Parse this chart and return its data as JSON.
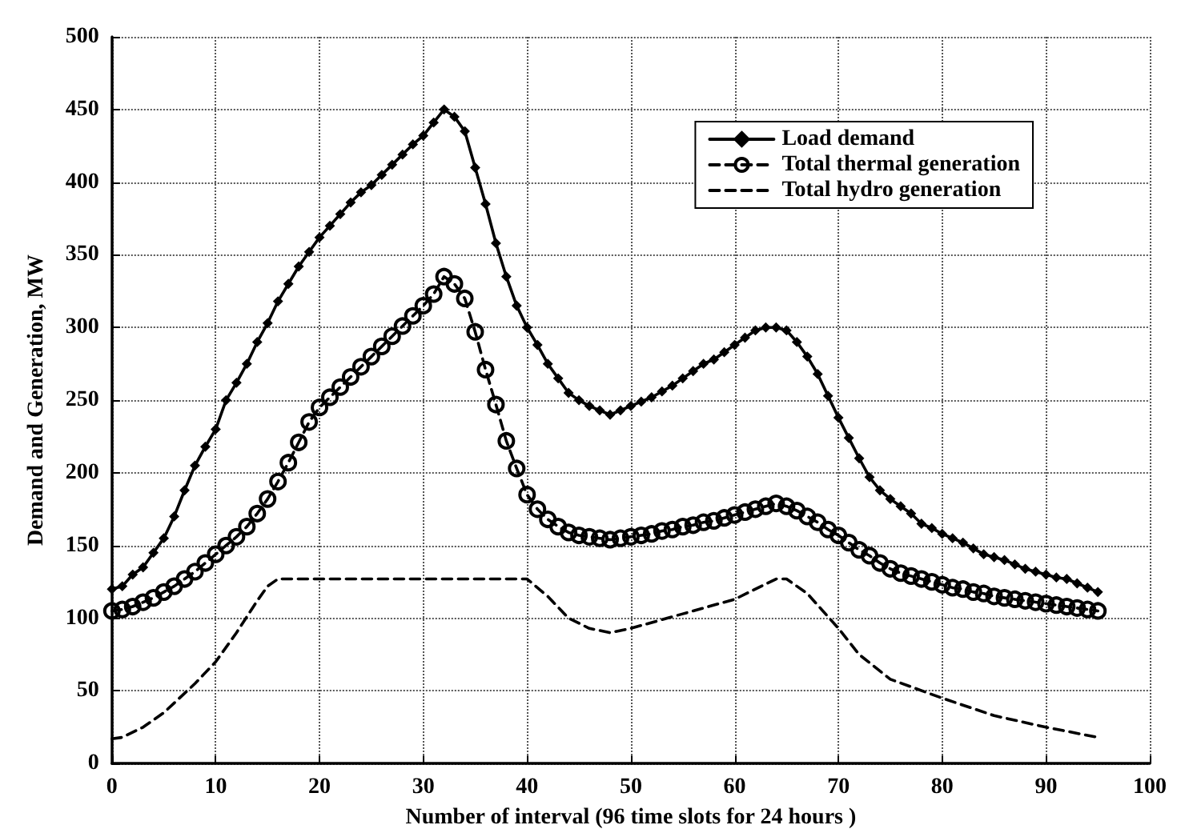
{
  "chart_data": {
    "type": "line",
    "xlabel": "Number of interval (96 time slots for 24 hours )",
    "ylabel": "Demand and Generation, MW",
    "xlim": [
      0,
      100
    ],
    "xticks": [
      0,
      10,
      20,
      30,
      40,
      50,
      60,
      70,
      80,
      90,
      100
    ],
    "ylim": [
      0,
      500
    ],
    "yticks": [
      0,
      50,
      100,
      150,
      200,
      250,
      300,
      350,
      400,
      450,
      500
    ],
    "grid": true,
    "legend": "top right",
    "series": [
      {
        "name": "Load demand",
        "color": "#000000",
        "marker": "diamond",
        "line_style": "solid",
        "x": [
          0,
          1,
          2,
          3,
          4,
          5,
          6,
          7,
          8,
          9,
          10,
          11,
          12,
          13,
          14,
          15,
          16,
          17,
          18,
          19,
          20,
          21,
          22,
          23,
          24,
          25,
          26,
          27,
          28,
          29,
          30,
          31,
          32,
          33,
          34,
          35,
          36,
          37,
          38,
          39,
          40,
          41,
          42,
          43,
          44,
          45,
          46,
          47,
          48,
          49,
          50,
          51,
          52,
          53,
          54,
          55,
          56,
          57,
          58,
          59,
          60,
          61,
          62,
          63,
          64,
          65,
          66,
          67,
          68,
          69,
          70,
          71,
          72,
          73,
          74,
          75,
          76,
          77,
          78,
          79,
          80,
          81,
          82,
          83,
          84,
          85,
          86,
          87,
          88,
          89,
          90,
          91,
          92,
          93,
          94,
          95
        ],
        "values": [
          120,
          122,
          130,
          135,
          145,
          155,
          170,
          188,
          205,
          218,
          230,
          250,
          262,
          275,
          290,
          303,
          318,
          330,
          342,
          352,
          362,
          370,
          378,
          386,
          393,
          398,
          405,
          412,
          419,
          426,
          432,
          441,
          450,
          445,
          435,
          410,
          385,
          358,
          335,
          315,
          300,
          288,
          275,
          265,
          255,
          250,
          246,
          243,
          240,
          243,
          246,
          249,
          252,
          256,
          260,
          265,
          270,
          275,
          278,
          283,
          288,
          293,
          298,
          300,
          300,
          298,
          290,
          280,
          268,
          253,
          238,
          224,
          210,
          197,
          188,
          182,
          177,
          172,
          165,
          162,
          158,
          155,
          152,
          148,
          144,
          142,
          140,
          137,
          134,
          132,
          130,
          128,
          127,
          124,
          121,
          118
        ]
      },
      {
        "name": "Total thermal generation",
        "color": "#000000",
        "marker": "circle",
        "line_style": "dashed",
        "x": [
          0,
          1,
          2,
          3,
          4,
          5,
          6,
          7,
          8,
          9,
          10,
          11,
          12,
          13,
          14,
          15,
          16,
          17,
          18,
          19,
          20,
          21,
          22,
          23,
          24,
          25,
          26,
          27,
          28,
          29,
          30,
          31,
          32,
          33,
          34,
          35,
          36,
          37,
          38,
          39,
          40,
          41,
          42,
          43,
          44,
          45,
          46,
          47,
          48,
          49,
          50,
          51,
          52,
          53,
          54,
          55,
          56,
          57,
          58,
          59,
          60,
          61,
          62,
          63,
          64,
          65,
          66,
          67,
          68,
          69,
          70,
          71,
          72,
          73,
          74,
          75,
          76,
          77,
          78,
          79,
          80,
          81,
          82,
          83,
          84,
          85,
          86,
          87,
          88,
          89,
          90,
          91,
          92,
          93,
          94,
          95
        ],
        "values": [
          105,
          106,
          108,
          111,
          114,
          118,
          122,
          127,
          132,
          138,
          144,
          150,
          156,
          163,
          172,
          182,
          194,
          207,
          221,
          235,
          245,
          252,
          259,
          266,
          273,
          280,
          287,
          294,
          301,
          308,
          315,
          323,
          335,
          330,
          320,
          297,
          271,
          247,
          222,
          203,
          185,
          175,
          168,
          163,
          159,
          157,
          156,
          155,
          154,
          155,
          156,
          157,
          158,
          160,
          161,
          163,
          164,
          166,
          167,
          169,
          171,
          173,
          175,
          177,
          179,
          177,
          174,
          170,
          166,
          161,
          157,
          152,
          147,
          143,
          138,
          134,
          131,
          129,
          127,
          125,
          123,
          121,
          120,
          118,
          117,
          115,
          114,
          113,
          112,
          111,
          110,
          109,
          108,
          107,
          106,
          105
        ]
      },
      {
        "name": "Total hydro generation",
        "color": "#000000",
        "marker": "none",
        "line_style": "dashed",
        "x": [
          0,
          1,
          3,
          5,
          8,
          10,
          12,
          14,
          15,
          16,
          40,
          42,
          44,
          46,
          48,
          50,
          55,
          60,
          64,
          65,
          67,
          70,
          72,
          75,
          80,
          85,
          90,
          95
        ],
        "values": [
          17,
          18,
          25,
          35,
          55,
          70,
          90,
          112,
          122,
          127,
          127,
          115,
          100,
          93,
          90,
          93,
          103,
          113,
          127,
          127,
          117,
          93,
          75,
          58,
          45,
          33,
          25,
          18
        ]
      }
    ]
  }
}
